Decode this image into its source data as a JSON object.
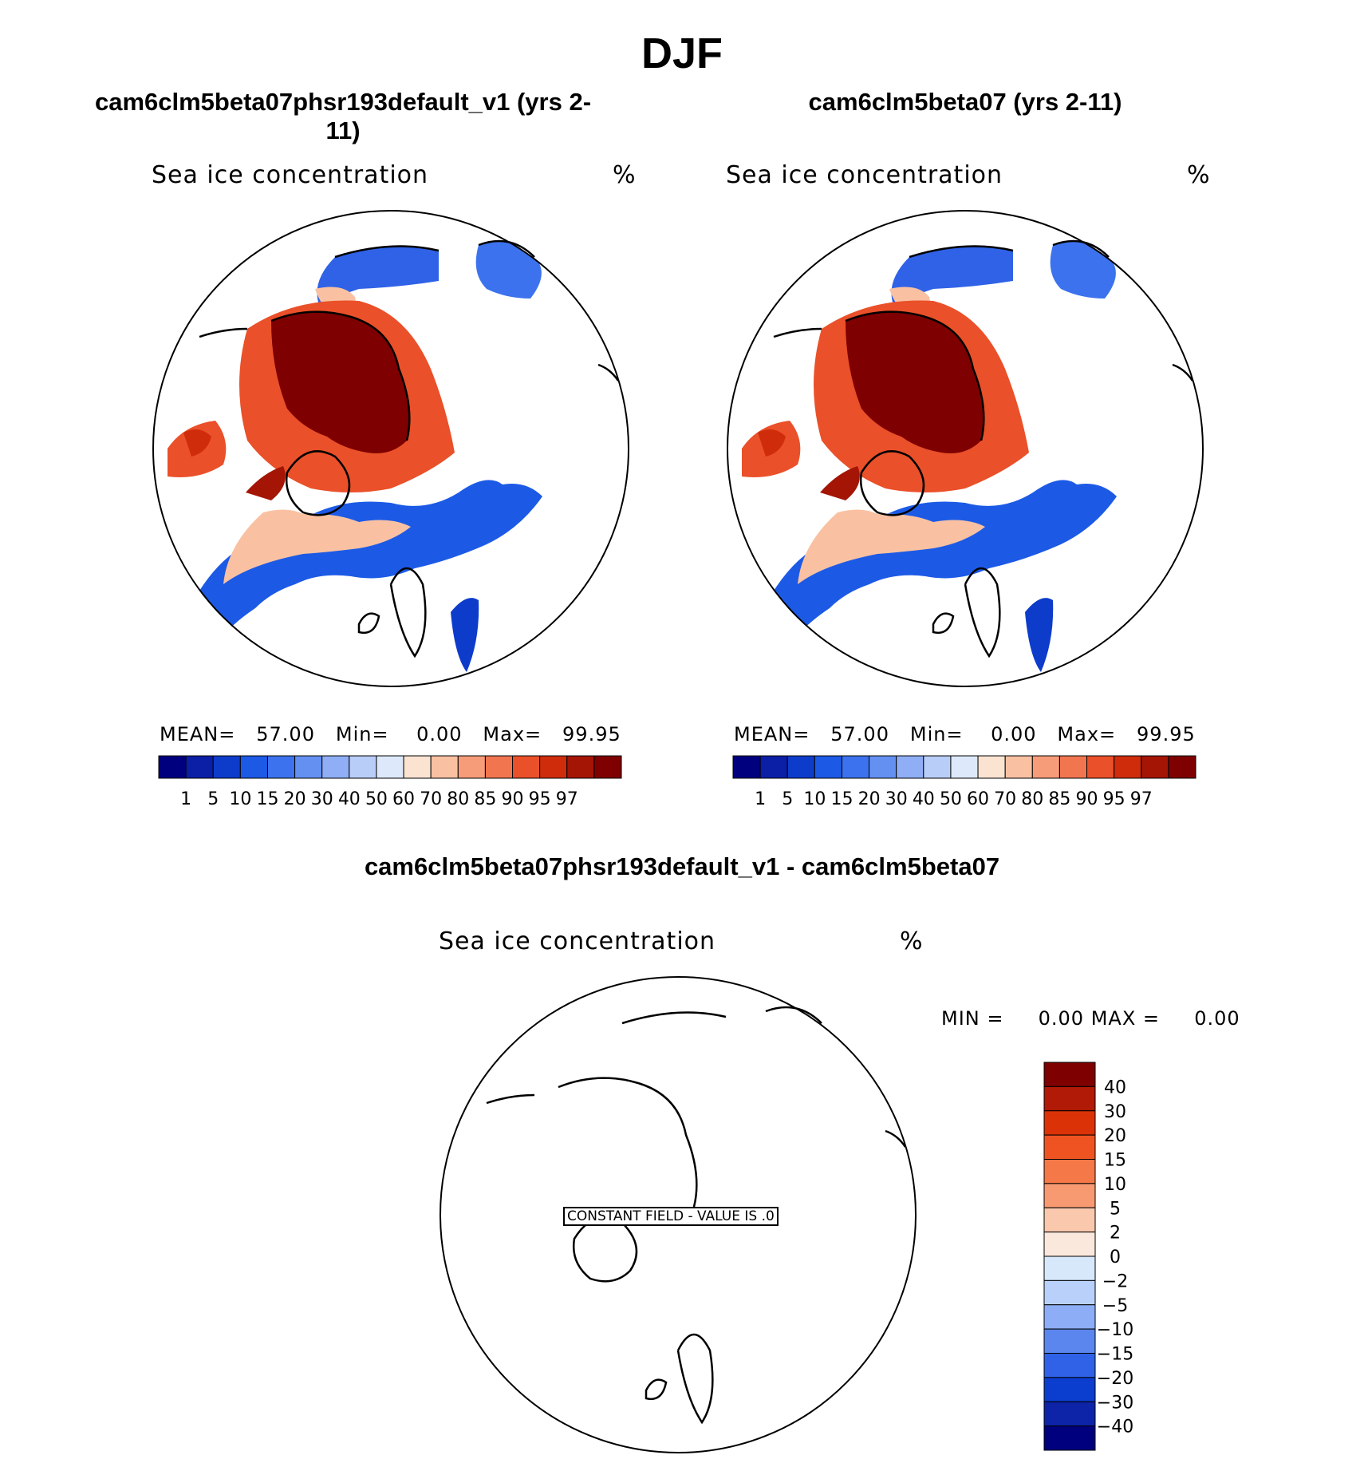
{
  "figure": {
    "title": "DJF",
    "panel1_title": "cam6clm5beta07phsr193default_v1 (yrs 2-11)",
    "panel2_title": "cam6clm5beta07 (yrs 2-11)",
    "panel3_title": "cam6clm5beta07phsr193default_v1 - cam6clm5beta07"
  },
  "chart_data": [
    {
      "type": "heatmap",
      "projection": "north polar stereographic",
      "variable": "Sea ice concentration",
      "units": "%",
      "stats": {
        "mean_label": "MEAN=",
        "mean": "57.00",
        "min_label": "Min=",
        "min": "0.00",
        "max_label": "Max=",
        "max": "99.95"
      },
      "colorbar": {
        "levels": [
          "1",
          "5",
          "10",
          "15",
          "20",
          "30",
          "40",
          "50",
          "60",
          "70",
          "80",
          "85",
          "90",
          "95",
          "97"
        ],
        "colors": [
          "#00007f",
          "#0a1fa6",
          "#0d3ccb",
          "#1c5ae6",
          "#3c72ee",
          "#6490f2",
          "#8faef6",
          "#b9cdf9",
          "#dde9fb",
          "#fbe3d2",
          "#f9c1a2",
          "#f69c78",
          "#f1764f",
          "#ea5029",
          "#cf2c0c",
          "#a41506",
          "#7f0000"
        ]
      }
    },
    {
      "type": "heatmap",
      "projection": "north polar stereographic",
      "variable": "Sea ice concentration",
      "units": "%",
      "stats": {
        "mean_label": "MEAN=",
        "mean": "57.00",
        "min_label": "Min=",
        "min": "0.00",
        "max_label": "Max=",
        "max": "99.95"
      },
      "colorbar": {
        "levels": [
          "1",
          "5",
          "10",
          "15",
          "20",
          "30",
          "40",
          "50",
          "60",
          "70",
          "80",
          "85",
          "90",
          "95",
          "97"
        ],
        "colors": [
          "#00007f",
          "#0a1fa6",
          "#0d3ccb",
          "#1c5ae6",
          "#3c72ee",
          "#6490f2",
          "#8faef6",
          "#b9cdf9",
          "#dde9fb",
          "#fbe3d2",
          "#f9c1a2",
          "#f69c78",
          "#f1764f",
          "#ea5029",
          "#cf2c0c",
          "#a41506",
          "#7f0000"
        ]
      }
    },
    {
      "type": "heatmap",
      "projection": "north polar stereographic",
      "variable": "Sea ice concentration",
      "units": "%",
      "stats": {
        "min_label": "MIN =",
        "min": "0.00",
        "max_label": "MAX =",
        "max": "0.00"
      },
      "annotation": "CONSTANT FIELD - VALUE IS .0",
      "colorbar": {
        "levels": [
          "40",
          "30",
          "20",
          "15",
          "10",
          "5",
          "2",
          "0",
          "−2",
          "−5",
          "−10",
          "−15",
          "−20",
          "−30",
          "−40"
        ],
        "colors": [
          "#7f0000",
          "#b01a06",
          "#db3208",
          "#f05322",
          "#f47848",
          "#f79a72",
          "#f9c8ad",
          "#fbe8dc",
          "#d8e8fb",
          "#b9d1fa",
          "#8daef6",
          "#5a86ee",
          "#2f62e6",
          "#0b3ecf",
          "#0d24a9",
          "#00007f"
        ]
      }
    }
  ]
}
